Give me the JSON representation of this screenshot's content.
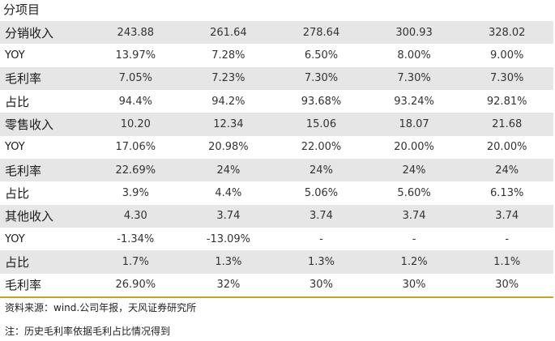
{
  "title": "分项目",
  "rows": [
    {
      "label": "分销收入",
      "values": [
        "243.88",
        "261.64",
        "278.64",
        "300.93",
        "328.02"
      ]
    },
    {
      "label": "YOY",
      "values": [
        "13.97%",
        "7.28%",
        "6.50%",
        "8.00%",
        "9.00%"
      ]
    },
    {
      "label": "毛利率",
      "values": [
        "7.05%",
        "7.23%",
        "7.30%",
        "7.30%",
        "7.30%"
      ]
    },
    {
      "label": "占比",
      "values": [
        "94.4%",
        "94.2%",
        "93.68%",
        "93.24%",
        "92.81%"
      ]
    },
    {
      "label": "零售收入",
      "values": [
        "10.20",
        "12.34",
        "15.06",
        "18.07",
        "21.68"
      ]
    },
    {
      "label": "YOY",
      "values": [
        "17.06%",
        "20.98%",
        "22.00%",
        "20.00%",
        "20.00%"
      ]
    },
    {
      "label": "毛利率",
      "values": [
        "22.69%",
        "24%",
        "24%",
        "24%",
        "24%"
      ]
    },
    {
      "label": "占比",
      "values": [
        "3.9%",
        "4.4%",
        "5.06%",
        "5.60%",
        "6.13%"
      ]
    },
    {
      "label": "其他收入",
      "values": [
        "4.30",
        "3.74",
        "3.74",
        "3.74",
        "3.74"
      ]
    },
    {
      "label": "YOY",
      "values": [
        "-1.34%",
        "-13.09%",
        "-",
        "-",
        "-"
      ]
    },
    {
      "label": "占比",
      "values": [
        "1.7%",
        "1.3%",
        "1.3%",
        "1.2%",
        "1.1%"
      ]
    },
    {
      "label": "毛利率",
      "values": [
        "26.90%",
        "32%",
        "30%",
        "30%",
        "30%"
      ]
    }
  ],
  "notes": {
    "source": "资料来源：wind.公司年报，天风证券研究所",
    "remark": "注：历史毛利率依据毛利占比情况得到"
  },
  "colors": {
    "shade": "#e6e6e6",
    "rule": "#c9a227"
  }
}
